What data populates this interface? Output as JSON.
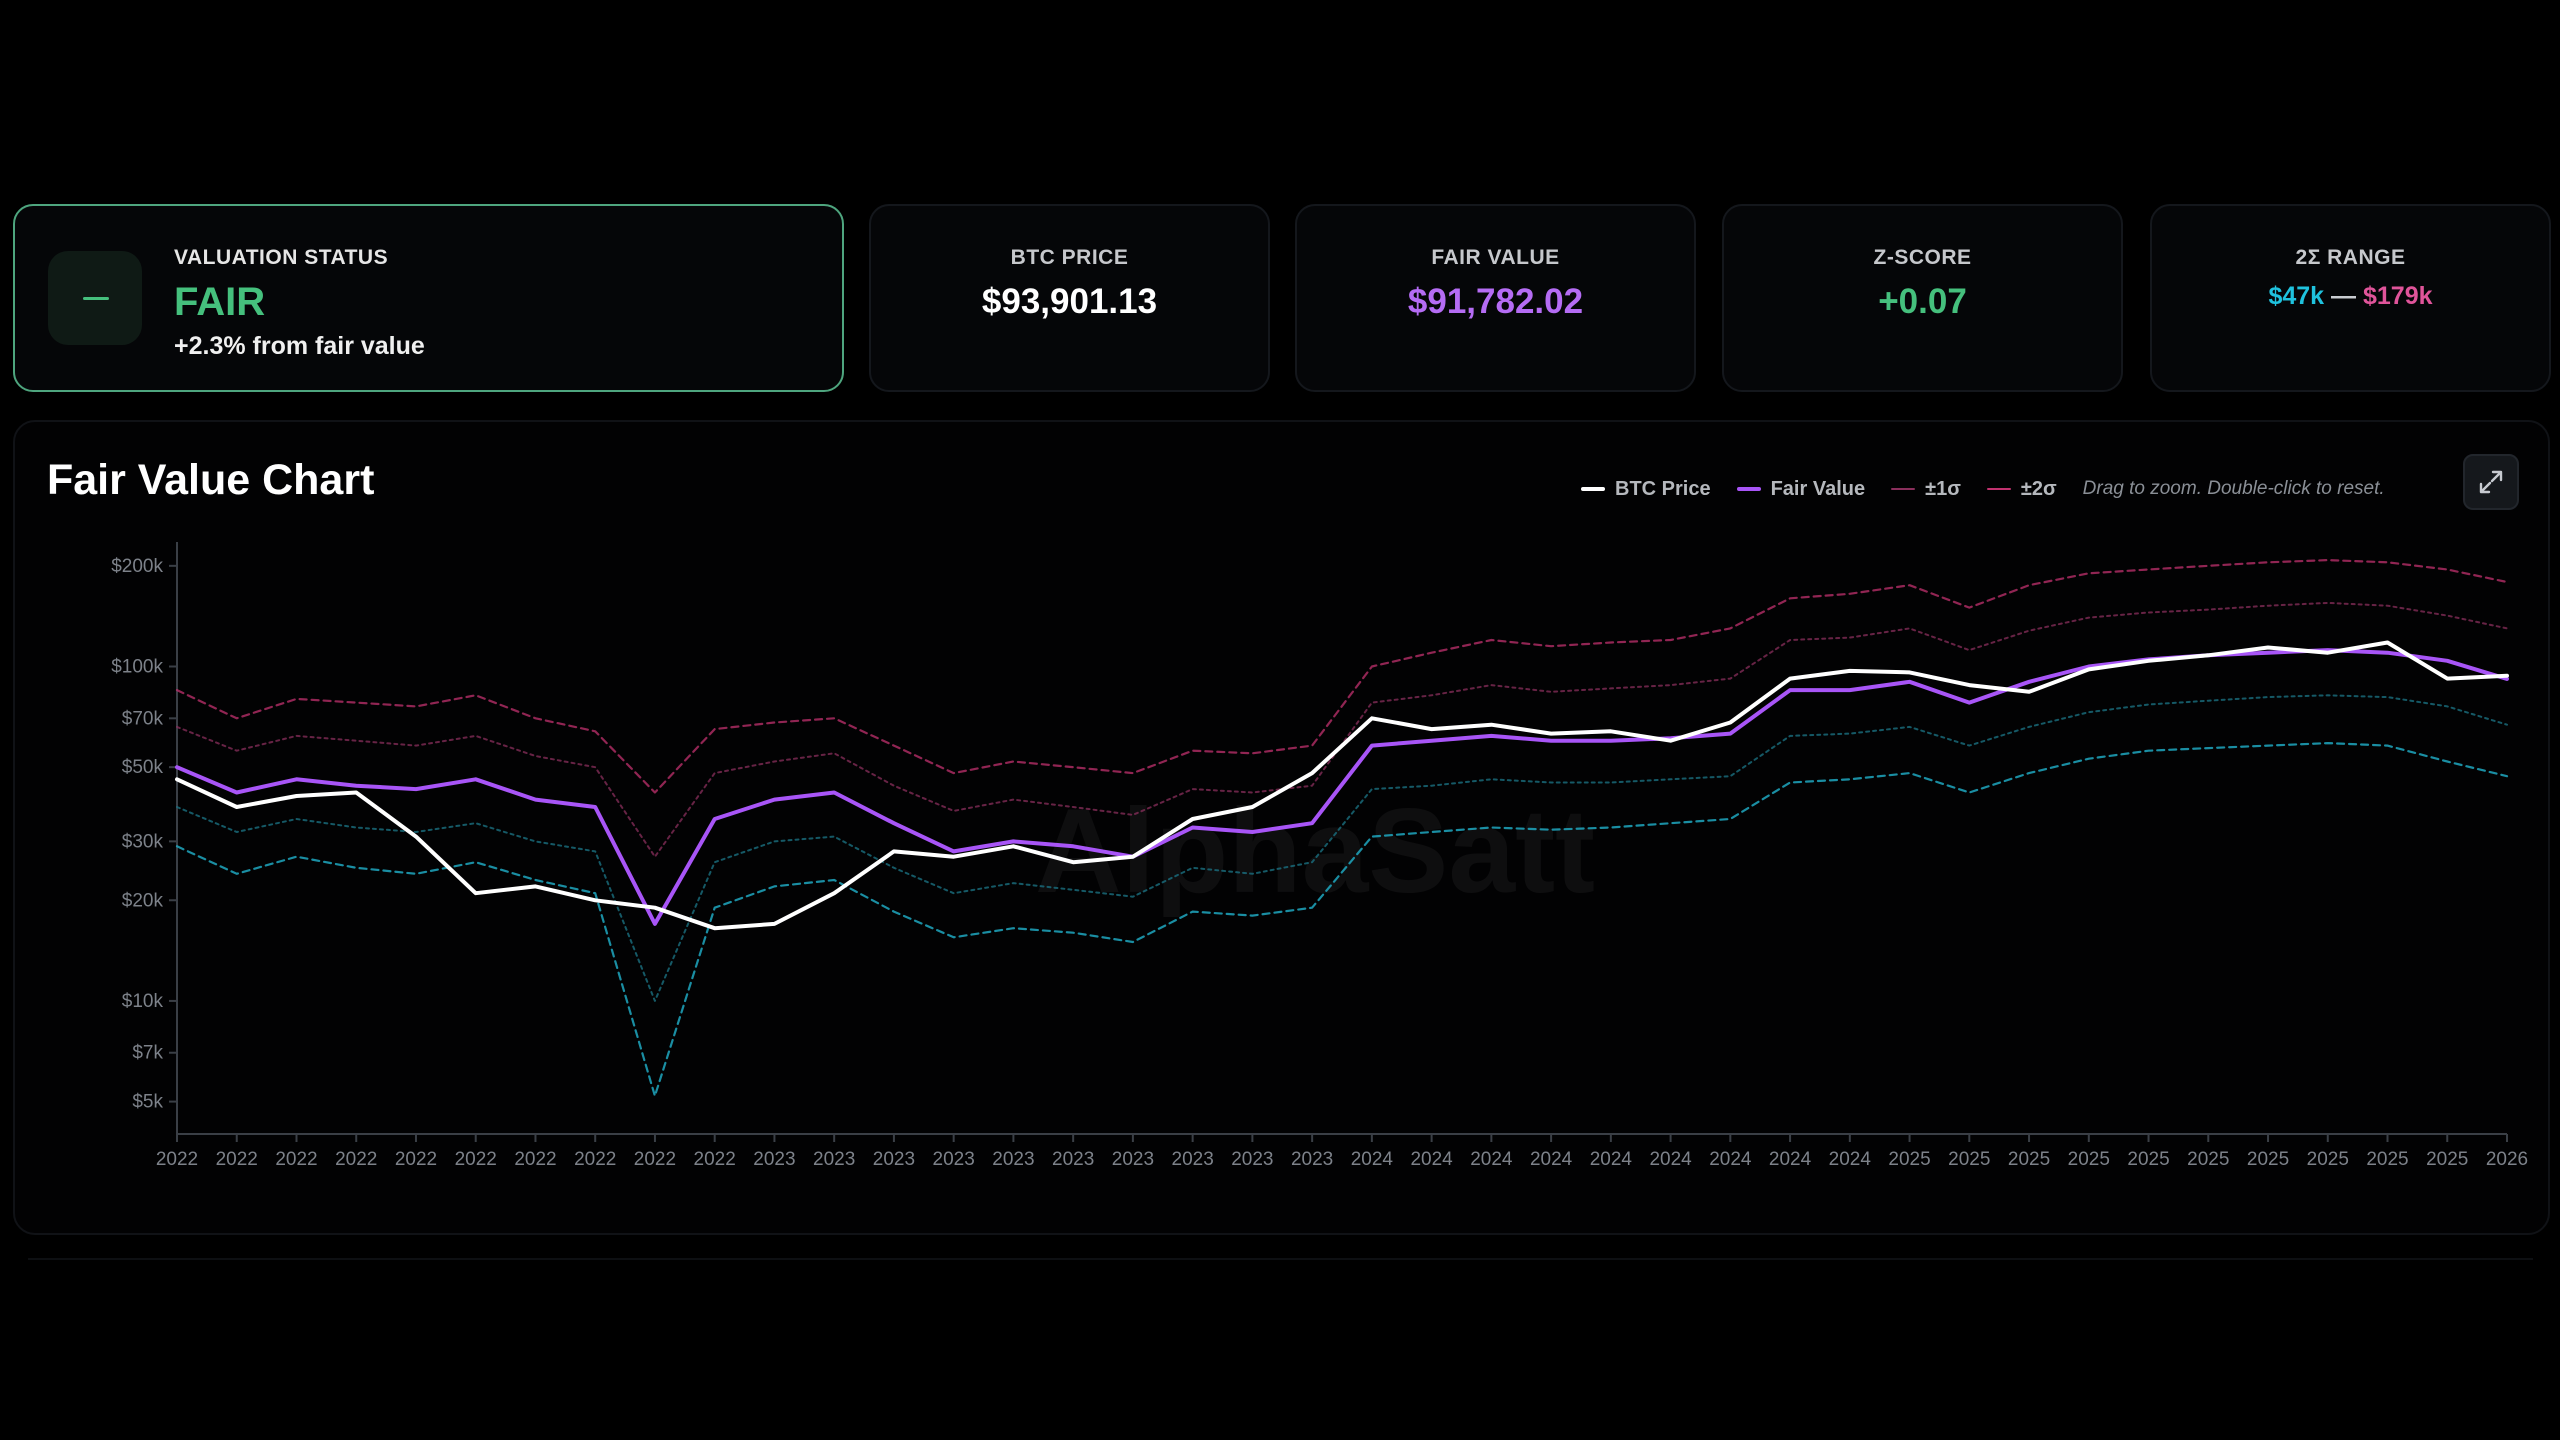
{
  "valuation": {
    "label": "VALUATION STATUS",
    "status": "FAIR",
    "detail": "+2.3% from fair value",
    "icon": "minus-icon",
    "color": "#45c07d"
  },
  "metrics": [
    {
      "label": "BTC PRICE",
      "value": "$93,901.13",
      "color": "#ffffff"
    },
    {
      "label": "FAIR VALUE",
      "value": "$91,782.02",
      "color": "#b56cf4"
    },
    {
      "label": "Z-SCORE",
      "value": "+0.07",
      "color": "#45c07d"
    }
  ],
  "range": {
    "label": "2Σ RANGE",
    "low": "$47k",
    "separator": "—",
    "high": "$179k",
    "low_color": "#1fc2de",
    "high_color": "#e0549a"
  },
  "chart_panel": {
    "title": "Fair Value Chart",
    "legend": [
      {
        "label": "BTC Price",
        "color": "#ffffff",
        "style": "solid"
      },
      {
        "label": "Fair Value",
        "color": "#a855f7",
        "style": "solid"
      },
      {
        "label": "±1σ",
        "color": "#8a2f5c",
        "style": "dashed"
      },
      {
        "label": "±2σ",
        "color": "#c2326f",
        "style": "dashed"
      }
    ],
    "hint": "Drag to zoom. Double-click to reset.",
    "expand_icon": "expand-icon"
  },
  "chart_data": {
    "type": "line",
    "y_scale": "log",
    "ylim": [
      4000,
      220000
    ],
    "y_ticks": [
      {
        "value": 200000,
        "label": "$200k"
      },
      {
        "value": 100000,
        "label": "$100k"
      },
      {
        "value": 70000,
        "label": "$70k"
      },
      {
        "value": 50000,
        "label": "$50k"
      },
      {
        "value": 30000,
        "label": "$30k"
      },
      {
        "value": 20000,
        "label": "$20k"
      },
      {
        "value": 10000,
        "label": "$10k"
      },
      {
        "value": 7000,
        "label": "$7k"
      },
      {
        "value": 5000,
        "label": "$5k"
      }
    ],
    "x_tick_labels": [
      "2022",
      "2022",
      "2022",
      "2022",
      "2022",
      "2022",
      "2022",
      "2022",
      "2022",
      "2022",
      "2023",
      "2023",
      "2023",
      "2023",
      "2023",
      "2023",
      "2023",
      "2023",
      "2023",
      "2023",
      "2024",
      "2024",
      "2024",
      "2024",
      "2024",
      "2024",
      "2024",
      "2024",
      "2024",
      "2025",
      "2025",
      "2025",
      "2025",
      "2025",
      "2025",
      "2025",
      "2025",
      "2025",
      "2025",
      "2026"
    ],
    "x": [
      0,
      1,
      2,
      3,
      4,
      5,
      6,
      7,
      8,
      9,
      10,
      11,
      12,
      13,
      14,
      15,
      16,
      17,
      18,
      19,
      20,
      21,
      22,
      23,
      24,
      25,
      26,
      27,
      28,
      29,
      30,
      31,
      32,
      33,
      34,
      35,
      36,
      37,
      38,
      39
    ],
    "series": [
      {
        "name": "BTC Price",
        "color": "#ffffff",
        "values": [
          46000,
          38000,
          41000,
          42000,
          31000,
          21000,
          22000,
          20000,
          19000,
          16500,
          17000,
          21000,
          28000,
          27000,
          29000,
          26000,
          27000,
          35000,
          38000,
          48000,
          70000,
          65000,
          67000,
          63000,
          64000,
          60000,
          68000,
          92000,
          97000,
          96000,
          88000,
          84000,
          98000,
          104000,
          108000,
          114000,
          110000,
          118000,
          92000,
          93900
        ]
      },
      {
        "name": "Fair Value",
        "color": "#a855f7",
        "values": [
          50000,
          42000,
          46000,
          44000,
          43000,
          46000,
          40000,
          38000,
          17000,
          35000,
          40000,
          42000,
          34000,
          28000,
          30000,
          29000,
          27000,
          33000,
          32000,
          34000,
          58000,
          60000,
          62000,
          60000,
          60000,
          61000,
          63000,
          85000,
          85000,
          90000,
          78000,
          90000,
          100000,
          105000,
          108000,
          110000,
          112000,
          110000,
          104000,
          91800
        ]
      },
      {
        "name": "+2σ",
        "color": "#c2326f",
        "values": [
          85000,
          70000,
          80000,
          78000,
          76000,
          82000,
          70000,
          64000,
          42000,
          65000,
          68000,
          70000,
          58000,
          48000,
          52000,
          50000,
          48000,
          56000,
          55000,
          58000,
          100000,
          110000,
          120000,
          115000,
          118000,
          120000,
          130000,
          160000,
          165000,
          175000,
          150000,
          175000,
          190000,
          195000,
          200000,
          205000,
          208000,
          205000,
          195000,
          179000
        ]
      },
      {
        "name": "+1σ",
        "color": "#8a2f5c",
        "values": [
          66000,
          56000,
          62000,
          60000,
          58000,
          62000,
          54000,
          50000,
          27000,
          48000,
          52000,
          55000,
          44000,
          37000,
          40000,
          38000,
          36000,
          43000,
          42000,
          44000,
          78000,
          82000,
          88000,
          84000,
          86000,
          88000,
          92000,
          120000,
          122000,
          130000,
          112000,
          128000,
          140000,
          145000,
          148000,
          152000,
          155000,
          152000,
          142000,
          130000
        ]
      },
      {
        "name": "-1σ",
        "color": "#1a6f80",
        "values": [
          38000,
          32000,
          35000,
          33000,
          32000,
          34000,
          30000,
          28000,
          10000,
          26000,
          30000,
          31000,
          25000,
          21000,
          22500,
          21500,
          20500,
          25000,
          24000,
          26000,
          43000,
          44000,
          46000,
          45000,
          45000,
          46000,
          47000,
          62000,
          63000,
          66000,
          58000,
          66000,
          73000,
          77000,
          79000,
          81000,
          82000,
          81000,
          76000,
          67000
        ]
      },
      {
        "name": "-2σ",
        "color": "#1fa7bf",
        "values": [
          29000,
          24000,
          27000,
          25000,
          24000,
          26000,
          23000,
          21000,
          5200,
          19000,
          22000,
          23000,
          18500,
          15500,
          16500,
          16000,
          15000,
          18500,
          18000,
          19000,
          31000,
          32000,
          33000,
          32500,
          33000,
          34000,
          35000,
          45000,
          46000,
          48000,
          42000,
          48000,
          53000,
          56000,
          57000,
          58000,
          59000,
          58000,
          52000,
          47000
        ]
      }
    ],
    "watermark": "AlphaSatt"
  }
}
